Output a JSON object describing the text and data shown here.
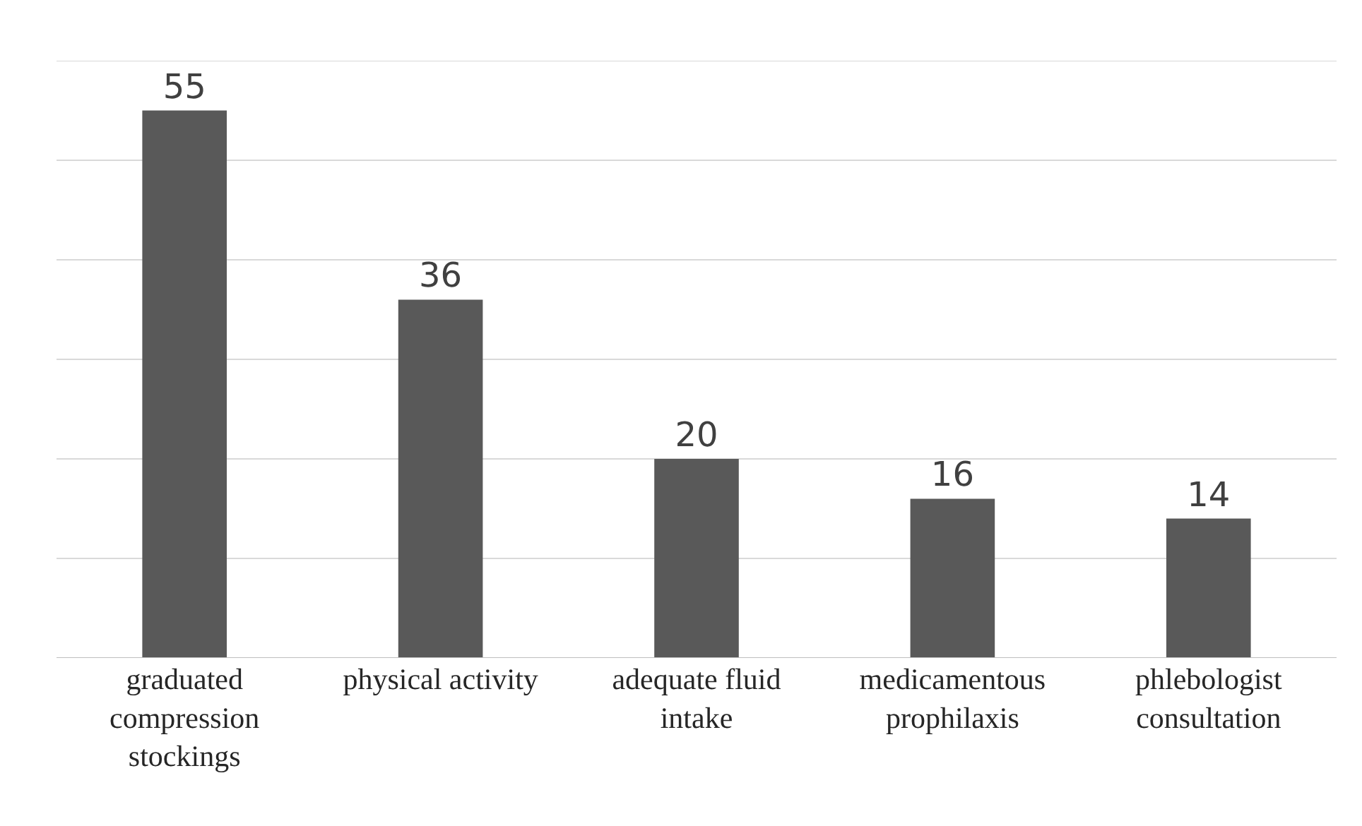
{
  "chart_data": {
    "type": "bar",
    "categories": [
      "graduated compression stockings",
      "physical activity",
      "adequate fluid intake",
      "medicamentous prophilaxis",
      "phlebologist consultation"
    ],
    "values": [
      55,
      36,
      20,
      16,
      14
    ],
    "color": "#595959",
    "ylim": [
      0,
      60
    ],
    "yticks": [
      {
        "value": 0,
        "label": null
      },
      {
        "value": 10,
        "label": null
      },
      {
        "value": 20,
        "label": null
      },
      {
        "value": 30,
        "label": null
      },
      {
        "value": 40,
        "label": null
      },
      {
        "value": 50,
        "label": null
      },
      {
        "value": 60,
        "label": null
      }
    ],
    "grid": "y",
    "tick_labels": "x",
    "data_labels": true,
    "legend": false
  }
}
